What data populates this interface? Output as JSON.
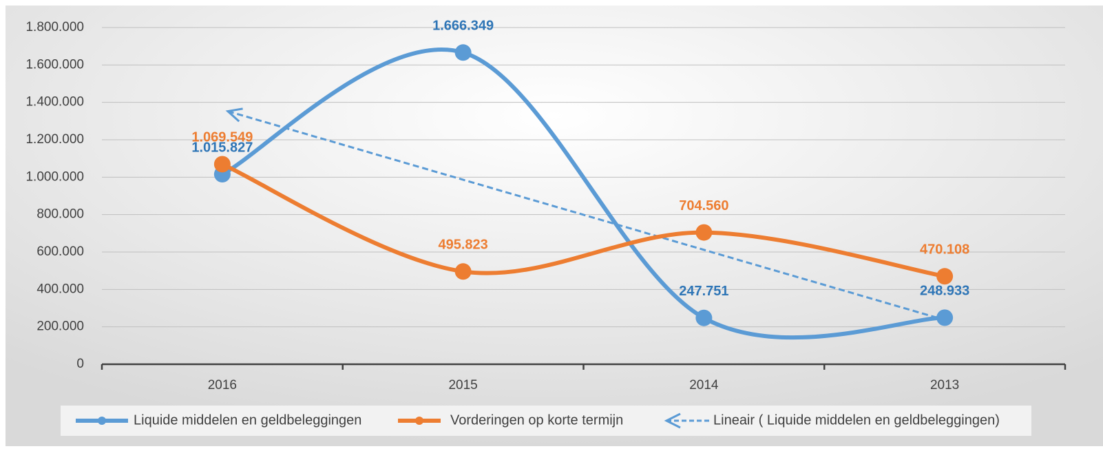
{
  "chart_data": {
    "type": "line",
    "categories": [
      "2016",
      "2015",
      "2014",
      "2013"
    ],
    "series": [
      {
        "name": "Liquide middelen en geldbeleggingen",
        "color": "#5b9bd5",
        "label_color": "#2e75b6",
        "values": [
          1015827,
          1666349,
          247751,
          248933
        ],
        "value_labels": [
          "1.015.827",
          "1.666.349",
          "247.751",
          "248.933"
        ]
      },
      {
        "name": "Vorderingen op korte termijn",
        "color": "#ed7d31",
        "label_color": "#ed7d31",
        "values": [
          1069549,
          495823,
          704560,
          470108
        ],
        "value_labels": [
          "1.069.549",
          "495.823",
          "704.560",
          "470.108"
        ]
      }
    ],
    "trendline": {
      "name": "Lineair ( Liquide middelen en geldbeleggingen)",
      "series": 0,
      "type": "linear"
    },
    "ylim": [
      0,
      1800000
    ],
    "yticks": [
      0,
      {
        "value": 200000,
        "label": "200.000"
      },
      {
        "value": 400000,
        "label": "400.000"
      },
      {
        "value": 600000,
        "label": "600.000"
      },
      {
        "value": 800000,
        "label": "800.000"
      },
      {
        "value": 1000000,
        "label": "1.000.000"
      },
      {
        "value": 1200000,
        "label": "1.200.000"
      },
      {
        "value": 1400000,
        "label": "1.400.000"
      },
      {
        "value": 1600000,
        "label": "1.600.000"
      },
      {
        "value": 1800000,
        "label": "1.800.000"
      }
    ],
    "grid": true,
    "smooth": true,
    "legend": "bottom"
  }
}
